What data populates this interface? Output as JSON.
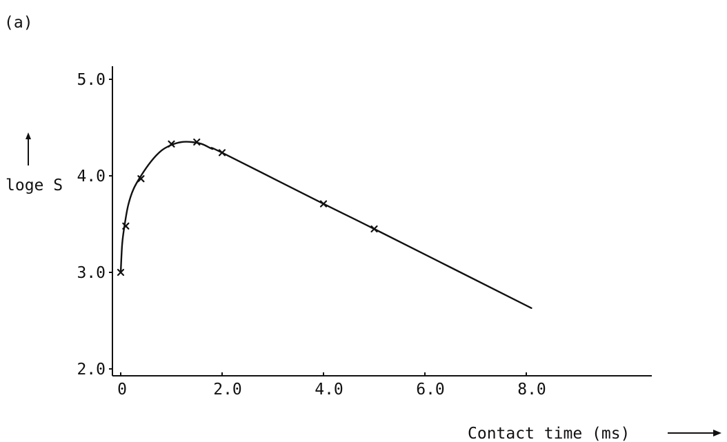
{
  "panel_label": "(a)",
  "chart_data": {
    "type": "scatter",
    "title": "",
    "xlabel": "Contact time (ms)",
    "ylabel": "loge S",
    "xlim": [
      0,
      10.5
    ],
    "ylim": [
      2.0,
      5.0
    ],
    "x_ticks": [
      0,
      2.0,
      4.0,
      6.0,
      8.0
    ],
    "x_tick_labels": [
      "0",
      "2.0",
      "4.0",
      "6.0",
      "8.0"
    ],
    "y_ticks": [
      2.0,
      3.0,
      4.0,
      5.0
    ],
    "y_tick_labels": [
      "2.0",
      "3.0",
      "4.0",
      "5.0"
    ],
    "grid": false,
    "series": [
      {
        "marker": "x",
        "x": [
          0.0,
          0.1,
          0.4,
          1.0,
          1.5,
          2.0,
          4.0,
          5.0
        ],
        "y": [
          3.0,
          3.48,
          3.97,
          4.33,
          4.35,
          4.24,
          3.71,
          3.45
        ]
      }
    ],
    "fitted_curve": {
      "x": [
        0.0,
        0.03,
        0.08,
        0.15,
        0.25,
        0.4,
        0.6,
        0.8,
        1.0,
        1.2,
        1.4,
        1.6,
        1.8,
        2.0,
        4.0,
        5.0,
        8.1
      ],
      "y": [
        3.0,
        3.3,
        3.5,
        3.7,
        3.86,
        4.0,
        4.15,
        4.26,
        4.32,
        4.35,
        4.35,
        4.33,
        4.28,
        4.24,
        3.71,
        3.45,
        2.63
      ]
    }
  }
}
